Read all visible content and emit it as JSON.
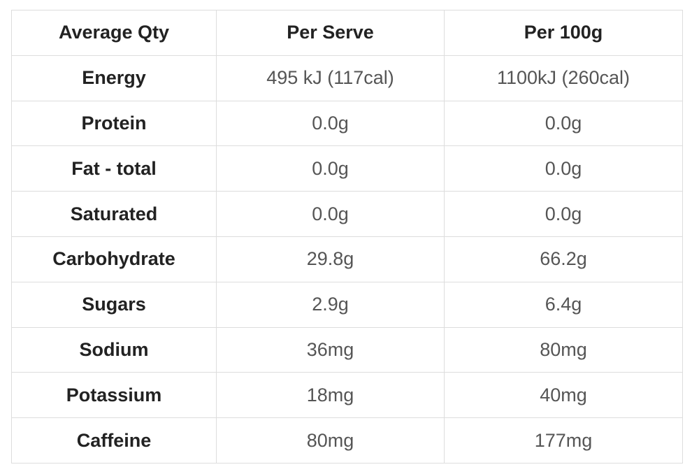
{
  "table": {
    "header": [
      "Average Qty",
      "Per Serve",
      "Per 100g"
    ],
    "rows": [
      [
        "Energy",
        "495 kJ (117cal)",
        "1100kJ (260cal)"
      ],
      [
        "Protein",
        "0.0g",
        "0.0g"
      ],
      [
        "Fat - total",
        "0.0g",
        "0.0g"
      ],
      [
        "Saturated",
        "0.0g",
        "0.0g"
      ],
      [
        "Carbohydrate",
        "29.8g",
        "66.2g"
      ],
      [
        "Sugars",
        "2.9g",
        "6.4g"
      ],
      [
        "Sodium",
        "36mg",
        "80mg"
      ],
      [
        "Potassium",
        "18mg",
        "40mg"
      ],
      [
        "Caffeine",
        "80mg",
        "177mg"
      ]
    ]
  }
}
